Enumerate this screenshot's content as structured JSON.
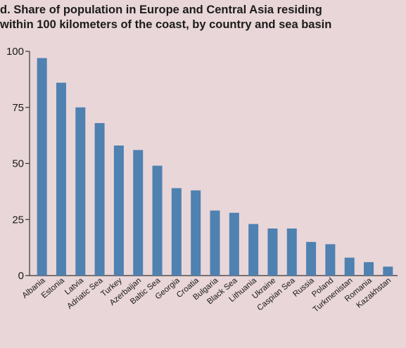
{
  "chart_data": {
    "type": "bar",
    "title_lines": [
      "d. Share of population in Europe and Central Asia residing",
      "within 100 kilometers of the coast, by country and sea basin"
    ],
    "xlabel": "",
    "ylabel": "",
    "ylim": [
      0,
      100
    ],
    "yticks": [
      0,
      25,
      50,
      75,
      100
    ],
    "grid": false,
    "legend": "none",
    "bar_color": "#4f81b1",
    "categories": [
      "Albania",
      "Estonia",
      "Latvia",
      "Adriatic Sea",
      "Turkey",
      "Azerbaijan",
      "Baltic Sea",
      "Georgia",
      "Croatia",
      "Bulgaria",
      "Black Sea",
      "Lithuania",
      "Ukraine",
      "Caspian Sea",
      "Russia",
      "Poland",
      "Turkmenistan",
      "Romania",
      "Kazakhstan"
    ],
    "values": [
      97,
      86,
      75,
      68,
      58,
      56,
      49,
      39,
      38,
      29,
      28,
      23,
      21,
      21,
      15,
      14,
      8,
      6,
      4
    ]
  }
}
